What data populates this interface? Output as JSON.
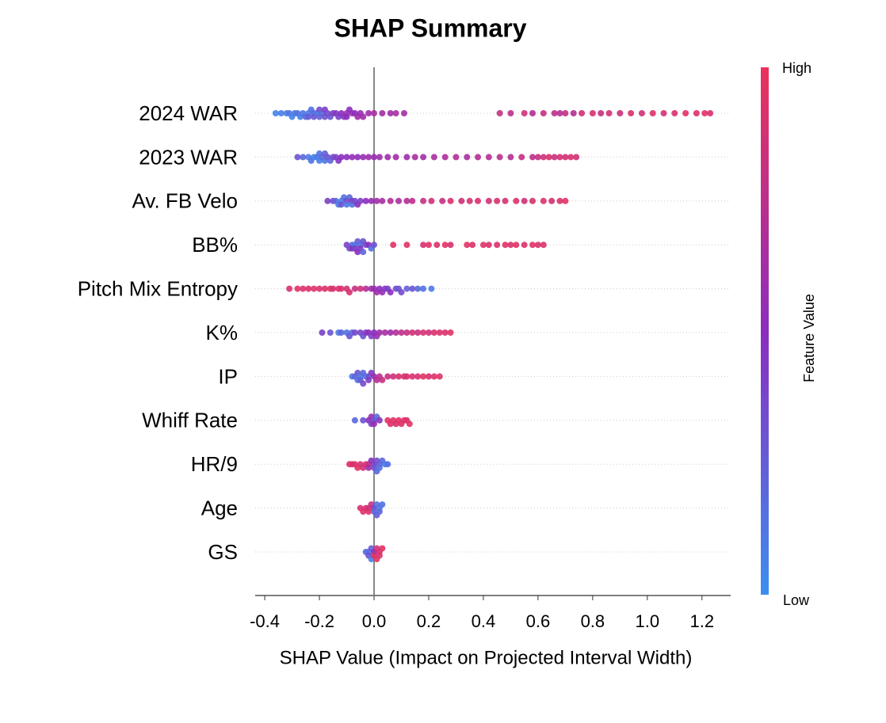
{
  "chart_data": {
    "type": "beeswarm",
    "title": "SHAP Summary",
    "x_label": "SHAP Value (Impact on Projected Interval Width)",
    "colorbar_label": "Feature Value",
    "colorbar_high": "High",
    "colorbar_low": "Low",
    "colormap": [
      "#3b8ef0",
      "#8c2dbe",
      "#eb325a"
    ],
    "xlim": [
      -0.435,
      1.305
    ],
    "xticks": [
      -0.4,
      -0.2,
      {
        "value": 0,
        "label": "0.0"
      },
      0.2,
      0.4,
      0.6,
      0.8,
      {
        "value": 1,
        "label": "1.0"
      },
      1.2
    ],
    "zero_line": true,
    "grid": true,
    "features": [
      {
        "name": "2024 WAR",
        "values": [
          -0.36,
          -0.34,
          -0.32,
          -0.31,
          -0.3,
          -0.29,
          -0.28,
          -0.27,
          -0.26,
          -0.25,
          -0.24,
          -0.24,
          -0.23,
          -0.22,
          -0.22,
          -0.21,
          -0.2,
          -0.2,
          -0.19,
          -0.18,
          -0.18,
          -0.17,
          -0.16,
          -0.15,
          -0.14,
          -0.13,
          -0.12,
          -0.11,
          -0.1,
          -0.1,
          -0.09,
          -0.08,
          -0.07,
          -0.06,
          -0.05,
          -0.04,
          -0.02,
          0.0,
          0.03,
          0.06,
          0.08,
          0.11,
          0.46,
          0.5,
          0.55,
          0.58,
          0.62,
          0.66,
          0.68,
          0.7,
          0.73,
          0.76,
          0.8,
          0.83,
          0.86,
          0.9,
          0.94,
          0.98,
          1.02,
          1.06,
          1.1,
          1.14,
          1.18,
          1.21,
          1.23
        ],
        "feature_values": [
          0.05,
          0.08,
          0.1,
          0.12,
          0.05,
          0.1,
          0.15,
          0.08,
          0.12,
          0.2,
          0.1,
          0.25,
          0.15,
          0.2,
          0.3,
          0.1,
          0.25,
          0.35,
          0.2,
          0.3,
          0.4,
          0.35,
          0.3,
          0.4,
          0.45,
          0.4,
          0.5,
          0.45,
          0.55,
          0.5,
          0.5,
          0.55,
          0.5,
          0.6,
          0.55,
          0.6,
          0.6,
          0.65,
          0.62,
          0.6,
          0.65,
          0.62,
          0.8,
          0.75,
          0.85,
          0.7,
          0.8,
          0.75,
          0.72,
          0.8,
          0.7,
          0.85,
          0.9,
          0.8,
          0.88,
          0.82,
          0.9,
          0.85,
          0.92,
          0.88,
          0.9,
          0.95,
          0.92,
          0.95,
          0.9
        ]
      },
      {
        "name": "2023 WAR",
        "values": [
          -0.28,
          -0.26,
          -0.24,
          -0.23,
          -0.22,
          -0.21,
          -0.2,
          -0.2,
          -0.19,
          -0.18,
          -0.18,
          -0.17,
          -0.16,
          -0.15,
          -0.14,
          -0.13,
          -0.12,
          -0.1,
          -0.08,
          -0.06,
          -0.04,
          -0.02,
          0.0,
          0.02,
          0.05,
          0.08,
          0.12,
          0.15,
          0.18,
          0.22,
          0.26,
          0.3,
          0.34,
          0.38,
          0.42,
          0.46,
          0.5,
          0.54,
          0.58,
          0.6,
          0.62,
          0.64,
          0.66,
          0.68,
          0.7,
          0.72,
          0.74
        ],
        "feature_values": [
          0.3,
          0.2,
          0.1,
          0.15,
          0.05,
          0.1,
          0.08,
          0.15,
          0.2,
          0.12,
          0.25,
          0.3,
          0.2,
          0.35,
          0.4,
          0.45,
          0.5,
          0.5,
          0.55,
          0.5,
          0.55,
          0.6,
          0.55,
          0.6,
          0.6,
          0.62,
          0.6,
          0.65,
          0.62,
          0.65,
          0.68,
          0.7,
          0.65,
          0.7,
          0.72,
          0.75,
          0.7,
          0.8,
          0.75,
          0.8,
          0.85,
          0.9,
          0.8,
          0.88,
          0.85,
          0.9,
          0.85
        ]
      },
      {
        "name": "Av. FB Velo",
        "values": [
          -0.17,
          -0.15,
          -0.14,
          -0.13,
          -0.12,
          -0.12,
          -0.11,
          -0.1,
          -0.1,
          -0.09,
          -0.08,
          -0.08,
          -0.07,
          -0.06,
          -0.05,
          -0.03,
          -0.01,
          0.01,
          0.03,
          0.06,
          0.09,
          0.12,
          0.14,
          0.18,
          0.21,
          0.25,
          0.28,
          0.32,
          0.35,
          0.38,
          0.42,
          0.45,
          0.48,
          0.52,
          0.55,
          0.58,
          0.62,
          0.65,
          0.68,
          0.7
        ],
        "feature_values": [
          0.4,
          0.35,
          0.2,
          0.1,
          0.05,
          0.3,
          0.15,
          0.4,
          0.1,
          0.2,
          0.45,
          0.15,
          0.35,
          0.5,
          0.4,
          0.5,
          0.55,
          0.6,
          0.65,
          0.7,
          0.65,
          0.7,
          0.75,
          0.8,
          0.85,
          0.8,
          0.9,
          0.85,
          0.88,
          0.9,
          0.85,
          0.9,
          0.88,
          0.92,
          0.85,
          0.9,
          0.92,
          0.88,
          0.9,
          0.95
        ]
      },
      {
        "name": "BB%",
        "values": [
          -0.1,
          -0.09,
          -0.08,
          -0.08,
          -0.07,
          -0.07,
          -0.06,
          -0.06,
          -0.05,
          -0.05,
          -0.04,
          -0.04,
          -0.03,
          -0.02,
          -0.01,
          0.0,
          0.07,
          0.12,
          0.18,
          0.2,
          0.23,
          0.26,
          0.28,
          0.34,
          0.36,
          0.4,
          0.42,
          0.45,
          0.48,
          0.5,
          0.52,
          0.55,
          0.58,
          0.6,
          0.62
        ],
        "feature_values": [
          0.4,
          0.3,
          0.2,
          0.5,
          0.1,
          0.4,
          0.25,
          0.5,
          0.15,
          0.45,
          0.3,
          0.2,
          0.35,
          0.5,
          0.15,
          0.3,
          0.95,
          0.95,
          0.9,
          0.95,
          0.92,
          0.95,
          0.9,
          0.95,
          0.92,
          0.95,
          0.9,
          0.92,
          0.95,
          0.9,
          0.95,
          0.92,
          0.95,
          0.9,
          0.92
        ]
      },
      {
        "name": "Pitch Mix Entropy",
        "values": [
          -0.31,
          -0.28,
          -0.26,
          -0.24,
          -0.22,
          -0.2,
          -0.18,
          -0.16,
          -0.15,
          -0.13,
          -0.12,
          -0.1,
          -0.09,
          -0.07,
          -0.05,
          -0.03,
          -0.01,
          0.0,
          0.01,
          0.02,
          0.03,
          0.04,
          0.05,
          0.06,
          0.08,
          0.09,
          0.1,
          0.12,
          0.14,
          0.16,
          0.18,
          0.21
        ],
        "feature_values": [
          0.9,
          0.95,
          0.92,
          0.9,
          0.95,
          0.9,
          0.92,
          0.95,
          0.88,
          0.9,
          0.92,
          0.85,
          0.9,
          0.8,
          0.85,
          0.7,
          0.6,
          0.55,
          0.6,
          0.5,
          0.55,
          0.45,
          0.4,
          0.5,
          0.35,
          0.3,
          0.35,
          0.25,
          0.3,
          0.2,
          0.15,
          0.1
        ]
      },
      {
        "name": "K%",
        "values": [
          -0.19,
          -0.16,
          -0.13,
          -0.12,
          -0.1,
          -0.09,
          -0.08,
          -0.07,
          -0.05,
          -0.04,
          -0.03,
          -0.02,
          -0.01,
          0.0,
          0.01,
          0.02,
          0.04,
          0.06,
          0.08,
          0.1,
          0.12,
          0.14,
          0.16,
          0.18,
          0.2,
          0.22,
          0.24,
          0.26,
          0.28
        ],
        "feature_values": [
          0.4,
          0.3,
          0.1,
          0.2,
          0.15,
          0.3,
          0.2,
          0.35,
          0.4,
          0.3,
          0.45,
          0.5,
          0.4,
          0.5,
          0.55,
          0.6,
          0.65,
          0.6,
          0.7,
          0.75,
          0.8,
          0.85,
          0.8,
          0.9,
          0.85,
          0.9,
          0.92,
          0.9,
          0.95
        ]
      },
      {
        "name": "IP",
        "values": [
          -0.08,
          -0.07,
          -0.06,
          -0.06,
          -0.05,
          -0.05,
          -0.04,
          -0.04,
          -0.03,
          -0.02,
          -0.02,
          -0.01,
          0.0,
          0.01,
          0.02,
          0.03,
          0.05,
          0.07,
          0.09,
          0.11,
          0.12,
          0.14,
          0.16,
          0.18,
          0.2,
          0.22,
          0.24
        ],
        "feature_values": [
          0.1,
          0.2,
          0.15,
          0.3,
          0.1,
          0.25,
          0.2,
          0.35,
          0.15,
          0.3,
          0.4,
          0.45,
          0.55,
          0.7,
          0.75,
          0.8,
          0.8,
          0.85,
          0.9,
          0.88,
          0.9,
          0.92,
          0.9,
          0.95,
          0.9,
          0.92,
          0.95
        ]
      },
      {
        "name": "Whiff Rate",
        "values": [
          -0.07,
          -0.04,
          -0.02,
          -0.01,
          -0.01,
          0.0,
          0.0,
          0.01,
          0.02,
          0.05,
          0.06,
          0.07,
          0.08,
          0.09,
          0.1,
          0.11,
          0.12,
          0.13
        ],
        "feature_values": [
          0.2,
          0.3,
          0.5,
          0.4,
          0.6,
          0.3,
          0.55,
          0.2,
          0.45,
          0.95,
          0.92,
          0.95,
          0.9,
          0.95,
          0.92,
          0.95,
          0.9,
          0.95
        ]
      },
      {
        "name": "HR/9",
        "values": [
          -0.09,
          -0.08,
          -0.07,
          -0.06,
          -0.05,
          -0.04,
          -0.03,
          -0.02,
          -0.02,
          -0.01,
          0.0,
          0.0,
          0.01,
          0.01,
          0.02,
          0.02,
          0.03,
          0.04,
          0.05
        ],
        "feature_values": [
          0.95,
          0.92,
          0.9,
          0.95,
          0.9,
          0.85,
          0.9,
          0.8,
          0.6,
          0.5,
          0.4,
          0.3,
          0.35,
          0.2,
          0.25,
          0.15,
          0.2,
          0.1,
          0.15
        ]
      },
      {
        "name": "Age",
        "values": [
          -0.05,
          -0.04,
          -0.03,
          -0.02,
          -0.02,
          -0.01,
          0.0,
          0.0,
          0.01,
          0.01,
          0.02,
          0.02,
          0.03
        ],
        "feature_values": [
          0.9,
          0.95,
          0.9,
          0.85,
          0.92,
          0.8,
          0.4,
          0.2,
          0.15,
          0.25,
          0.1,
          0.2,
          0.15
        ]
      },
      {
        "name": "GS",
        "values": [
          -0.03,
          -0.02,
          -0.02,
          -0.01,
          -0.01,
          0.0,
          0.0,
          0.01,
          0.01,
          0.02,
          0.02,
          0.03
        ],
        "feature_values": [
          0.2,
          0.15,
          0.3,
          0.25,
          0.1,
          0.5,
          0.9,
          0.85,
          0.95,
          0.9,
          0.92,
          0.95
        ]
      }
    ]
  }
}
